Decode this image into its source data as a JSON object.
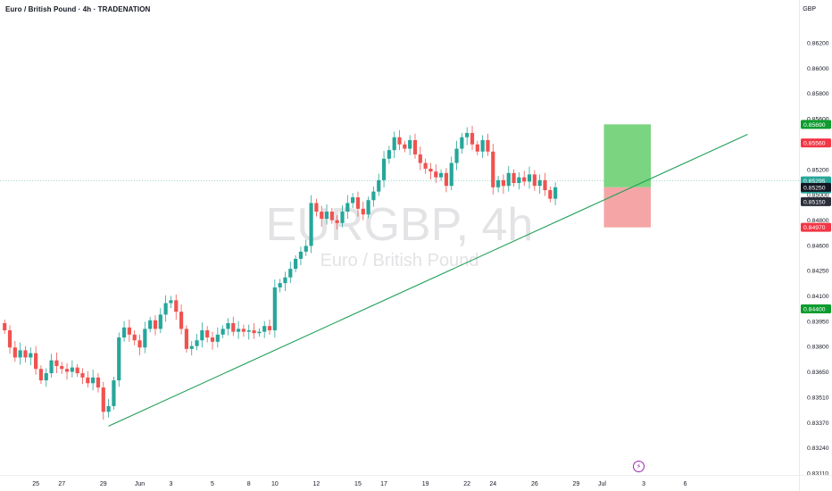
{
  "header": {
    "title": "Euro / British Pound · 4h · TRADENATION",
    "currency": "GBP"
  },
  "watermark": {
    "symbol": "EURGBP, 4h",
    "description": "Euro / British Pound"
  },
  "colors": {
    "up": "#26a69a",
    "down": "#ef5350",
    "trendline": "#22a05a",
    "target_zone": "#6ccf72",
    "stop_zone": "#f49b9b",
    "target_badge": "#0d9c2e",
    "stop_badge": "#f23645",
    "current_badge": "#26a69a",
    "black_badge": "#131722",
    "grey_badge": "#2a2e39",
    "axis_text": "#131722"
  },
  "chart_data": {
    "type": "candlestick",
    "symbol": "EURGBP",
    "interval": "4h",
    "ylim": [
      0.8311,
      0.8656
    ],
    "y_ticks": [
      "0.86200",
      "0.86000",
      "0.85800",
      "0.85600",
      "0.85400",
      "0.85200",
      "0.85000",
      "0.84800",
      "0.84600",
      "0.84250",
      "0.84100",
      "0.83950",
      "0.83800",
      "0.83650",
      "0.83510",
      "0.83370",
      "0.83240",
      "0.83110"
    ],
    "x_ticks": [
      {
        "label": "25",
        "bar": 6
      },
      {
        "label": "27",
        "bar": 11
      },
      {
        "label": "29",
        "bar": 19
      },
      {
        "label": "Jun",
        "bar": 26
      },
      {
        "label": "3",
        "bar": 32
      },
      {
        "label": "5",
        "bar": 40
      },
      {
        "label": "8",
        "bar": 47
      },
      {
        "label": "10",
        "bar": 52
      },
      {
        "label": "12",
        "bar": 60
      },
      {
        "label": "15",
        "bar": 68
      },
      {
        "label": "17",
        "bar": 73
      },
      {
        "label": "19",
        "bar": 81
      },
      {
        "label": "22",
        "bar": 89
      },
      {
        "label": "24",
        "bar": 94
      },
      {
        "label": "26",
        "bar": 102
      },
      {
        "label": "29",
        "bar": 110
      },
      {
        "label": "Jul",
        "bar": 115
      },
      {
        "label": "3",
        "bar": 123
      },
      {
        "label": "6",
        "bar": 131
      }
    ],
    "candle_closes": [
      0.8425,
      0.8413,
      0.8406,
      0.8411,
      0.8406,
      0.8409,
      0.8398,
      0.839,
      0.8395,
      0.8404,
      0.84,
      0.8398,
      0.8396,
      0.8399,
      0.8395,
      0.8392,
      0.8388,
      0.8392,
      0.8385,
      0.8368,
      0.8372,
      0.839,
      0.842,
      0.8427,
      0.8422,
      0.8418,
      0.8413,
      0.8426,
      0.8432,
      0.8426,
      0.8436,
      0.8444,
      0.8446,
      0.8438,
      0.8426,
      0.8412,
      0.8414,
      0.8418,
      0.8425,
      0.842,
      0.8417,
      0.8422,
      0.8426,
      0.843,
      0.8424,
      0.8426,
      0.8424,
      0.8425,
      0.8423,
      0.8424,
      0.8428,
      0.8425,
      0.8455,
      0.8458,
      0.8462,
      0.8468,
      0.8475,
      0.848,
      0.8484,
      0.8514,
      0.8508,
      0.8503,
      0.8508,
      0.8502,
      0.85,
      0.8508,
      0.8514,
      0.8518,
      0.851,
      0.8506,
      0.8516,
      0.8522,
      0.853,
      0.8545,
      0.8551,
      0.856,
      0.8555,
      0.8552,
      0.8558,
      0.8548,
      0.8542,
      0.8538,
      0.8536,
      0.8532,
      0.8535,
      0.8526,
      0.8542,
      0.8552,
      0.856,
      0.8563,
      0.8555,
      0.855,
      0.8558,
      0.855,
      0.8525,
      0.853,
      0.8526,
      0.8535,
      0.8528,
      0.8532,
      0.8529,
      0.8534,
      0.8526,
      0.853,
      0.8523,
      0.8517,
      0.8525
    ],
    "trendline": {
      "start": {
        "bar": 20,
        "price": 0.8358
      },
      "end": {
        "bar": 143,
        "price": 0.8562
      }
    },
    "position": {
      "entry": 0.8525,
      "target": 0.8569,
      "stop": 0.8497,
      "start_bar": 115,
      "end_bar": 123
    },
    "current_price": 0.85295,
    "countdown": "50:23",
    "horizontal_level": 0.844,
    "price_badges": [
      {
        "label": "0.85690",
        "value": 0.8569,
        "kind": "target"
      },
      {
        "label": "0.85560",
        "value": 0.8556,
        "kind": "stop"
      },
      {
        "label": "0.85295",
        "value": 0.85295,
        "kind": "current",
        "sub": "50:23"
      },
      {
        "label": "0.85250",
        "value": 0.8525,
        "kind": "black"
      },
      {
        "label": "0.85150",
        "value": 0.8515,
        "kind": "grey"
      },
      {
        "label": "0.84970",
        "value": 0.8497,
        "kind": "stop"
      },
      {
        "label": "0.84400",
        "value": 0.844,
        "kind": "target"
      }
    ]
  }
}
